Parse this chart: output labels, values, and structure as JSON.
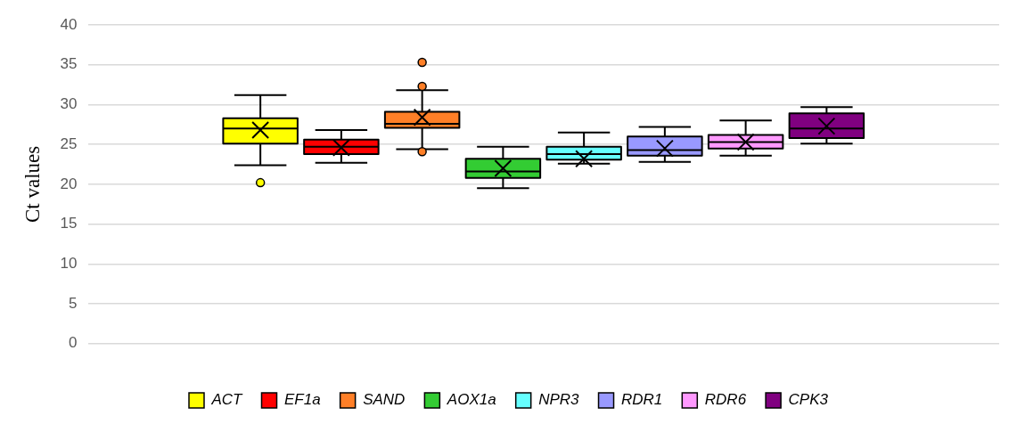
{
  "chart_data": {
    "type": "box",
    "ylabel": "Ct values",
    "categories": [
      null
    ],
    "ylim": [
      0,
      40
    ],
    "yticks": [
      0,
      5,
      10,
      15,
      20,
      25,
      30,
      35,
      40
    ],
    "grid": "y",
    "legend": "bottom",
    "series": [
      {
        "name": "ACT",
        "color": "#ffff00",
        "boxes": [
          {
            "low": 22.4,
            "q1": 25.1,
            "median": 27.0,
            "q3": 28.3,
            "high": 31.2,
            "mean": 26.8,
            "outliers": [
              20.2
            ]
          }
        ]
      },
      {
        "name": "EF1a",
        "color": "#ff0000",
        "boxes": [
          {
            "low": 22.7,
            "q1": 23.8,
            "median": 24.7,
            "q3": 25.6,
            "high": 26.8,
            "mean": 24.6
          }
        ]
      },
      {
        "name": "SAND",
        "color": "#ff7f27",
        "boxes": [
          {
            "low": 24.4,
            "q1": 27.1,
            "median": 27.6,
            "q3": 29.1,
            "high": 31.8,
            "mean": 28.4,
            "outliers": [
              35.3,
              32.3,
              24.1
            ]
          }
        ]
      },
      {
        "name": "AOX1a",
        "color": "#33cc33",
        "boxes": [
          {
            "low": 19.5,
            "q1": 20.8,
            "median": 21.6,
            "q3": 23.2,
            "high": 24.7,
            "mean": 22.0
          }
        ]
      },
      {
        "name": "NPR3",
        "color": "#66ffff",
        "boxes": [
          {
            "low": 22.6,
            "q1": 23.1,
            "median": 23.8,
            "q3": 24.7,
            "high": 26.5,
            "mean": 23.2
          }
        ]
      },
      {
        "name": "RDR1",
        "color": "#9999ff",
        "boxes": [
          {
            "low": 22.8,
            "q1": 23.6,
            "median": 24.3,
            "q3": 26.0,
            "high": 27.2,
            "mean": 24.5
          }
        ]
      },
      {
        "name": "RDR6",
        "color": "#ff99ff",
        "boxes": [
          {
            "low": 23.6,
            "q1": 24.5,
            "median": 25.3,
            "q3": 26.2,
            "high": 28.0,
            "mean": 25.3
          }
        ]
      },
      {
        "name": "CPK3",
        "color": "#800080",
        "boxes": [
          {
            "low": 25.1,
            "q1": 25.8,
            "median": 27.0,
            "q3": 28.9,
            "high": 29.7,
            "mean": 27.3
          }
        ]
      }
    ]
  }
}
